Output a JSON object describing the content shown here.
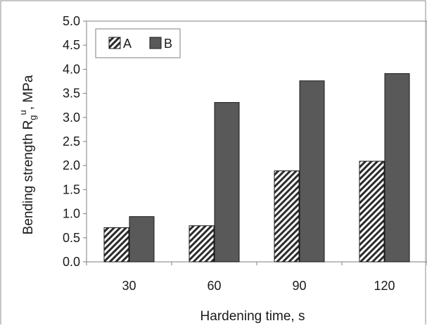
{
  "chart_data": {
    "type": "bar",
    "categories": [
      "30",
      "60",
      "90",
      "120"
    ],
    "series": [
      {
        "name": "A",
        "values": [
          0.71,
          0.75,
          1.89,
          2.09
        ],
        "pattern": "diagonal-hatch",
        "color": "#2b2b2b"
      },
      {
        "name": "B",
        "values": [
          0.94,
          3.31,
          3.76,
          3.91
        ],
        "pattern": "solid",
        "color": "#595959"
      }
    ],
    "xlabel": "Hardening time, s",
    "ylabel": {
      "main": "Bending strength R",
      "subscript": "g",
      "superscript": "u",
      "suffix": ", MPa"
    },
    "ylim": [
      0,
      5.0
    ],
    "yticks": [
      "0.0",
      "0.5",
      "1.0",
      "1.5",
      "2.0",
      "2.5",
      "3.0",
      "3.5",
      "4.0",
      "4.5",
      "5.0"
    ],
    "grid": false,
    "legend_position": "top-left"
  }
}
